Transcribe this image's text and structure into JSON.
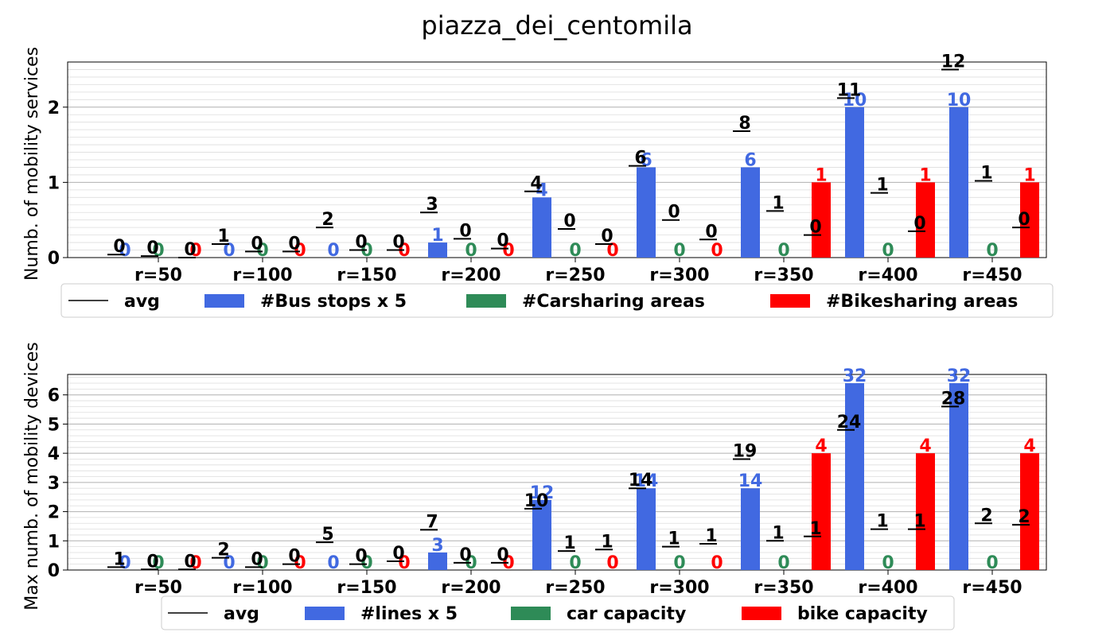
{
  "title": "piazza_dei_centomila",
  "chart_data": [
    {
      "type": "bar",
      "ylabel": "Numb. of mobility services",
      "ylim": [
        0,
        2.6
      ],
      "yticks": [
        0,
        1,
        2
      ],
      "categories": [
        "r=50",
        "r=100",
        "r=150",
        "r=200",
        "r=250",
        "r=300",
        "r=350",
        "r=400",
        "r=450"
      ],
      "legend_position": "bottom",
      "legend": [
        {
          "label": "avg",
          "color": "#000000",
          "kind": "line"
        },
        {
          "label": "#Bus stops x 5",
          "color": "#4169e1",
          "kind": "patch"
        },
        {
          "label": "#Carsharing areas",
          "color": "#2e8b57",
          "kind": "patch"
        },
        {
          "label": "#Bikesharing areas",
          "color": "#ff0000",
          "kind": "patch"
        }
      ],
      "series": [
        {
          "color": "#4169e1",
          "values": [
            0,
            0,
            0,
            0.2,
            0.8,
            1.2,
            1.2,
            2.0,
            2.0
          ],
          "labels": [
            "0",
            "0",
            "0",
            "1",
            "4",
            "6",
            "6",
            "10",
            "10"
          ]
        },
        {
          "color": "#2e8b57",
          "values": [
            0,
            0,
            0,
            0,
            0,
            0,
            0,
            0,
            0
          ],
          "labels": [
            "0",
            "0",
            "0",
            "0",
            "0",
            "0",
            "0",
            "0",
            "0"
          ]
        },
        {
          "color": "#ff0000",
          "values": [
            0,
            0,
            0,
            0,
            0,
            0,
            1,
            1,
            1
          ],
          "labels": [
            "0",
            "0",
            "0",
            "0",
            "0",
            "0",
            "1",
            "1",
            "1"
          ]
        }
      ],
      "avg_markers": [
        {
          "series": 0,
          "values": [
            0.04,
            0.18,
            0.4,
            0.6,
            0.88,
            1.22,
            1.68,
            2.12,
            2.5
          ],
          "labels": [
            "0",
            "1",
            "2",
            "3",
            "4",
            "6",
            "8",
            "11",
            "12"
          ]
        },
        {
          "series": 1,
          "values": [
            0.02,
            0.08,
            0.1,
            0.25,
            0.38,
            0.5,
            0.62,
            0.86,
            1.02
          ],
          "labels": [
            "0",
            "0",
            "0",
            "0",
            "0",
            "0",
            "1",
            "1",
            "1"
          ]
        },
        {
          "series": 2,
          "values": [
            0,
            0.08,
            0.1,
            0.12,
            0.18,
            0.24,
            0.3,
            0.35,
            0.4
          ],
          "labels": [
            "0",
            "0",
            "0",
            "0",
            "0",
            "0",
            "0",
            "0",
            "0"
          ]
        }
      ]
    },
    {
      "type": "bar",
      "ylabel": "Max numb. of mobility devices",
      "ylim": [
        0,
        6.7
      ],
      "yticks": [
        0,
        1,
        2,
        3,
        4,
        5,
        6
      ],
      "categories": [
        "r=50",
        "r=100",
        "r=150",
        "r=200",
        "r=250",
        "r=300",
        "r=350",
        "r=400",
        "r=450"
      ],
      "legend_position": "bottom",
      "legend": [
        {
          "label": "avg",
          "color": "#000000",
          "kind": "line"
        },
        {
          "label": "#lines x 5",
          "color": "#4169e1",
          "kind": "patch"
        },
        {
          "label": "car capacity",
          "color": "#2e8b57",
          "kind": "patch"
        },
        {
          "label": "bike capacity",
          "color": "#ff0000",
          "kind": "patch"
        }
      ],
      "series": [
        {
          "color": "#4169e1",
          "values": [
            0,
            0,
            0,
            0.6,
            2.4,
            2.8,
            2.8,
            6.4,
            6.4
          ],
          "labels": [
            "0",
            "0",
            "0",
            "3",
            "12",
            "14",
            "14",
            "32",
            "32"
          ]
        },
        {
          "color": "#2e8b57",
          "values": [
            0,
            0,
            0,
            0,
            0,
            0,
            0,
            0,
            0
          ],
          "labels": [
            "0",
            "0",
            "0",
            "0",
            "0",
            "0",
            "0",
            "0",
            "0"
          ]
        },
        {
          "color": "#ff0000",
          "values": [
            0,
            0,
            0,
            0,
            0,
            0,
            4,
            4,
            4
          ],
          "labels": [
            "0",
            "0",
            "0",
            "0",
            "0",
            "0",
            "4",
            "4",
            "4"
          ]
        }
      ],
      "avg_markers": [
        {
          "series": 0,
          "values": [
            0.1,
            0.42,
            0.95,
            1.38,
            2.1,
            2.8,
            3.8,
            4.8,
            5.6
          ],
          "labels": [
            "1",
            "2",
            "5",
            "7",
            "10",
            "14",
            "19",
            "24",
            "28"
          ]
        },
        {
          "series": 1,
          "values": [
            0.02,
            0.1,
            0.2,
            0.25,
            0.65,
            0.8,
            1.0,
            1.4,
            1.6
          ],
          "labels": [
            "0",
            "0",
            "0",
            "0",
            "1",
            "1",
            "1",
            "1",
            "2"
          ]
        },
        {
          "series": 2,
          "values": [
            0.02,
            0.2,
            0.3,
            0.25,
            0.7,
            0.9,
            1.15,
            1.4,
            1.55
          ],
          "labels": [
            "0",
            "0",
            "0",
            "0",
            "1",
            "1",
            "1",
            "1",
            "2"
          ]
        }
      ]
    }
  ]
}
